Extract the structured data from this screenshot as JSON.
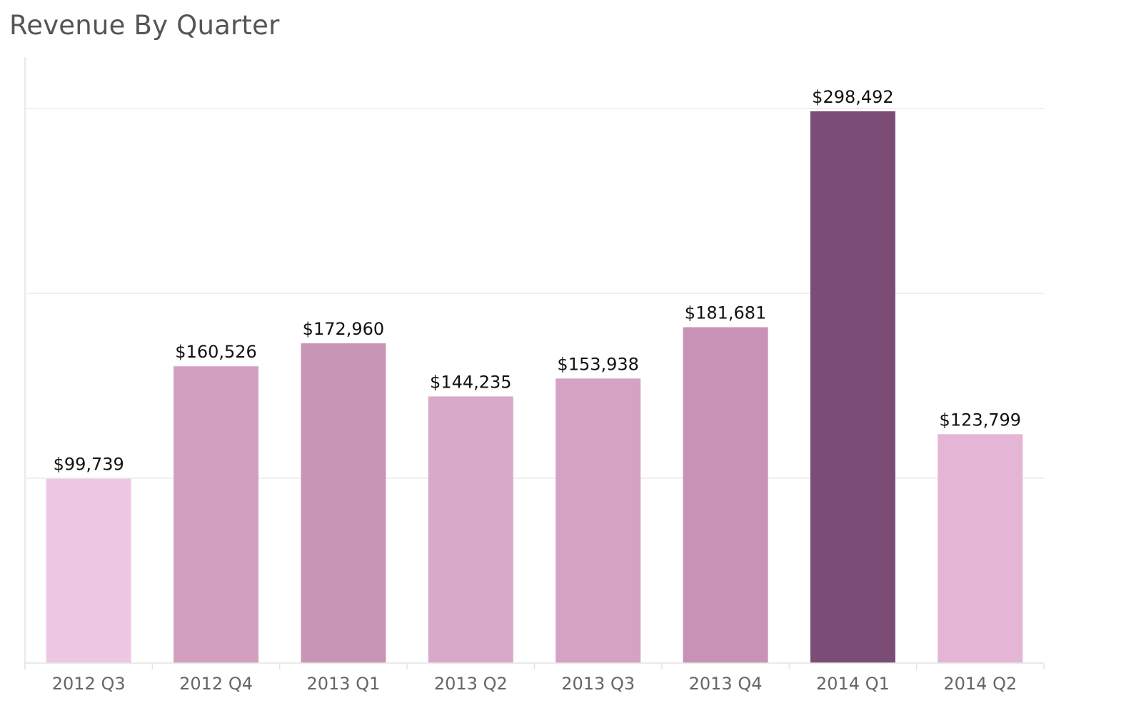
{
  "title": "Revenue By Quarter",
  "chart_data": {
    "type": "bar",
    "title": "Revenue By Quarter",
    "xlabel": "",
    "ylabel": "",
    "categories": [
      "2012 Q3",
      "2012 Q4",
      "2013 Q1",
      "2013 Q2",
      "2013 Q3",
      "2013 Q4",
      "2014 Q1",
      "2014 Q2"
    ],
    "values": [
      99739,
      160526,
      172960,
      144235,
      153938,
      181681,
      298492,
      123799
    ],
    "value_labels": [
      "$99,739",
      "$160,526",
      "$172,960",
      "$144,235",
      "$153,938",
      "$181,681",
      "$298,492",
      "$123,799"
    ],
    "colors": [
      "#ecc8e4",
      "#d29fc1",
      "#c995b7",
      "#d9a9c9",
      "#d5a2c3",
      "#c792b5",
      "#7b4c76",
      "#e5b5d6"
    ],
    "ylim": [
      0,
      350000
    ],
    "gridlines": [
      100000,
      200000,
      300000
    ],
    "grid": true,
    "y_tick_labels_shown": false,
    "legend": "none"
  }
}
